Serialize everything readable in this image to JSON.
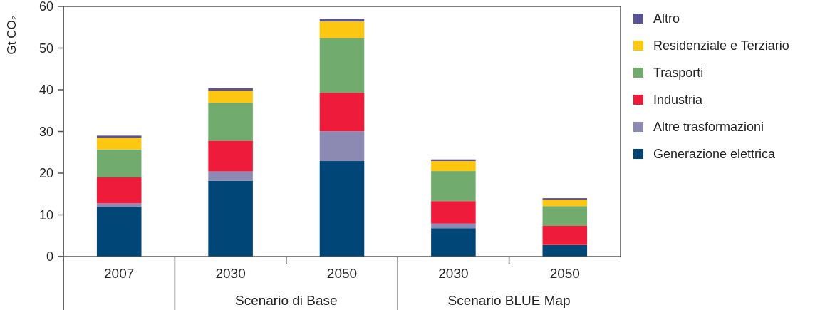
{
  "chart_data": {
    "type": "bar",
    "stacked": true,
    "ylabel": "Gt CO₂",
    "categories": [
      "2007",
      "2030",
      "2050",
      "2030",
      "2050"
    ],
    "annotations": [
      "Scenario di Base",
      "Scenario BLUE Map"
    ],
    "ylim": [
      0,
      60
    ],
    "yticks": [
      0,
      10,
      20,
      30,
      40,
      50,
      60
    ],
    "grid": false,
    "legend": "right",
    "series": [
      {
        "name": "Generazione elettrica",
        "color": "#004677",
        "values": [
          11.9,
          18.2,
          22.9,
          6.8,
          2.8
        ]
      },
      {
        "name": "Altre trasformazioni",
        "color": "#8c8ab3",
        "values": [
          0.85,
          2.2,
          7.15,
          1.1,
          0
        ]
      },
      {
        "name": "Industria",
        "color": "#ee1b3b",
        "values": [
          6.25,
          7.4,
          9.25,
          5.4,
          4.55
        ]
      },
      {
        "name": "Trasporti",
        "color": "#71ac6e",
        "values": [
          6.7,
          9.1,
          13.1,
          7.2,
          4.75
        ]
      },
      {
        "name": "Residenziale e Terziario",
        "color": "#fdc711",
        "values": [
          2.8,
          2.9,
          4,
          2.4,
          1.55
        ]
      },
      {
        "name": "Altro",
        "color": "#5a5398",
        "values": [
          0.5,
          0.6,
          0.6,
          0.4,
          0.35
        ]
      }
    ]
  }
}
